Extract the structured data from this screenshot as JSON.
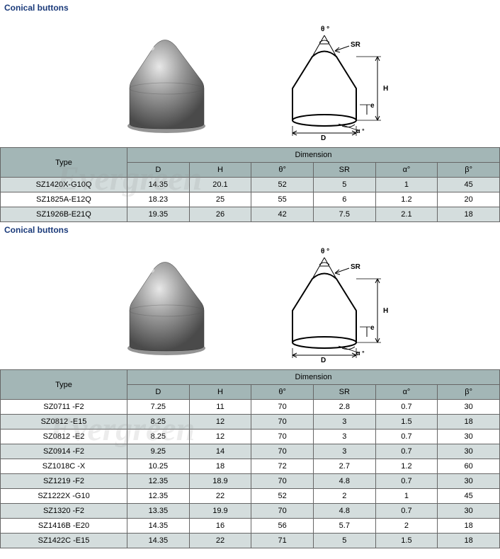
{
  "watermark_text": "Evergreen",
  "sections": [
    {
      "title": "Conical buttons",
      "diagram_labels": {
        "theta": "θ °",
        "sr": "SR",
        "h": "H",
        "e": "e",
        "alpha": "α °",
        "d": "D"
      },
      "table": {
        "type_header": "Type",
        "dim_header": "Dimension",
        "columns": [
          "D",
          "H",
          "θ°",
          "SR",
          "α°",
          "β°"
        ],
        "rows": [
          {
            "alt": true,
            "type": "SZ1420X-G10Q",
            "v": [
              "14.35",
              "20.1",
              "52",
              "5",
              "1",
              "45"
            ]
          },
          {
            "alt": false,
            "type": "SZ1825A-E12Q",
            "v": [
              "18.23",
              "25",
              "55",
              "6",
              "1.2",
              "20"
            ]
          },
          {
            "alt": true,
            "type": "SZ1926B-E21Q",
            "v": [
              "19.35",
              "26",
              "42",
              "7.5",
              "2.1",
              "18"
            ]
          }
        ]
      },
      "colors": {
        "title_color": "#1a3a7a",
        "header_bg": "#a3b6b6",
        "alt_bg": "#d4dddd",
        "border": "#666666"
      }
    },
    {
      "title": "Conical buttons",
      "diagram_labels": {
        "theta": "θ °",
        "sr": "SR",
        "h": "H",
        "e": "e",
        "alpha": "α °",
        "d": "D"
      },
      "table": {
        "type_header": "Type",
        "dim_header": "Dimension",
        "columns": [
          "D",
          "H",
          "θ°",
          "SR",
          "α°",
          "β°"
        ],
        "rows": [
          {
            "alt": false,
            "type": "SZ0711 -F2",
            "v": [
              "7.25",
              "11",
              "70",
              "2.8",
              "0.7",
              "30"
            ]
          },
          {
            "alt": true,
            "type": "SZ0812 -E15",
            "v": [
              "8.25",
              "12",
              "70",
              "3",
              "1.5",
              "18"
            ]
          },
          {
            "alt": false,
            "type": "SZ0812 -E2",
            "v": [
              "8.25",
              "12",
              "70",
              "3",
              "0.7",
              "30"
            ]
          },
          {
            "alt": true,
            "type": "SZ0914 -F2",
            "v": [
              "9.25",
              "14",
              "70",
              "3",
              "0.7",
              "30"
            ]
          },
          {
            "alt": false,
            "type": "SZ1018C -X",
            "v": [
              "10.25",
              "18",
              "72",
              "2.7",
              "1.2",
              "60"
            ]
          },
          {
            "alt": true,
            "type": "SZ1219 -F2",
            "v": [
              "12.35",
              "18.9",
              "70",
              "4.8",
              "0.7",
              "30"
            ]
          },
          {
            "alt": false,
            "type": "SZ1222X -G10",
            "v": [
              "12.35",
              "22",
              "52",
              "2",
              "1",
              "45"
            ]
          },
          {
            "alt": true,
            "type": "SZ1320 -F2",
            "v": [
              "13.35",
              "19.9",
              "70",
              "4.8",
              "0.7",
              "30"
            ]
          },
          {
            "alt": false,
            "type": "SZ1416B -E20",
            "v": [
              "14.35",
              "16",
              "56",
              "5.7",
              "2",
              "18"
            ]
          },
          {
            "alt": true,
            "type": "SZ1422C -E15",
            "v": [
              "14.35",
              "22",
              "71",
              "5",
              "1.5",
              "18"
            ]
          }
        ]
      },
      "colors": {
        "title_color": "#1a3a7a",
        "header_bg": "#a3b6b6",
        "alt_bg": "#d4dddd",
        "border": "#666666"
      }
    }
  ],
  "button_render": {
    "fill_top": "#d8d8d8",
    "fill_mid": "#9a9a9a",
    "fill_dark": "#5a5a5a",
    "shadow": "#2a2a2a"
  },
  "diagram_render": {
    "stroke": "#000000",
    "stroke_thin": 1,
    "stroke_thick": 2
  }
}
